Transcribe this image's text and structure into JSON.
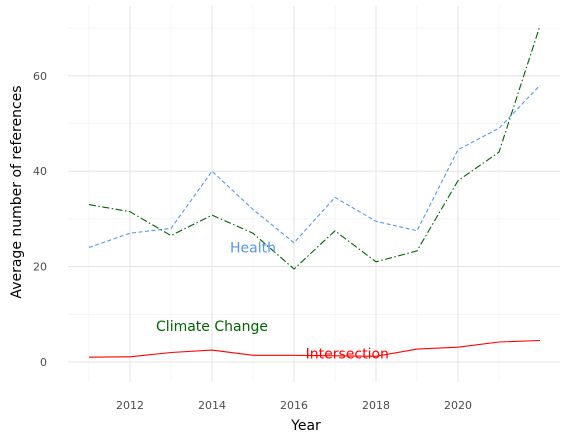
{
  "chart_data": {
    "type": "line",
    "xlabel": "Year",
    "ylabel": "Average number of references",
    "xlim": [
      2010.5,
      2023.5
    ],
    "ylim": [
      -2,
      73
    ],
    "x_ticks": [
      2012,
      2014,
      2016,
      2018,
      2020
    ],
    "y_ticks": [
      0,
      20,
      40,
      60
    ],
    "grid": true,
    "legend": "none",
    "x": [
      2011,
      2012,
      2013,
      2014,
      2015,
      2016,
      2017,
      2018,
      2019,
      2020,
      2021,
      2022
    ],
    "series": [
      {
        "name": "Health",
        "color": "#5599ee",
        "dash": "dashed",
        "values": [
          24.0,
          27.0,
          28.0,
          40.0,
          32.0,
          25.0,
          34.5,
          29.5,
          27.5,
          44.5,
          49.0,
          58.0
        ],
        "label_at": [
          2015.0,
          24.0
        ]
      },
      {
        "name": "Climate Change",
        "color": "#006400",
        "dash": "dashdot",
        "values": [
          33.0,
          31.5,
          26.5,
          30.8,
          27.0,
          19.5,
          27.5,
          21.0,
          23.3,
          38.0,
          44.0,
          70.5
        ],
        "label_at": [
          2014.0,
          7.5
        ]
      },
      {
        "name": "Intersection",
        "color": "#ff0000",
        "dash": "solid",
        "values": [
          1.0,
          1.1,
          2.0,
          2.5,
          1.4,
          1.4,
          1.3,
          1.2,
          2.7,
          3.1,
          4.2,
          4.5
        ],
        "label_at": [
          2017.3,
          1.8
        ]
      }
    ]
  }
}
